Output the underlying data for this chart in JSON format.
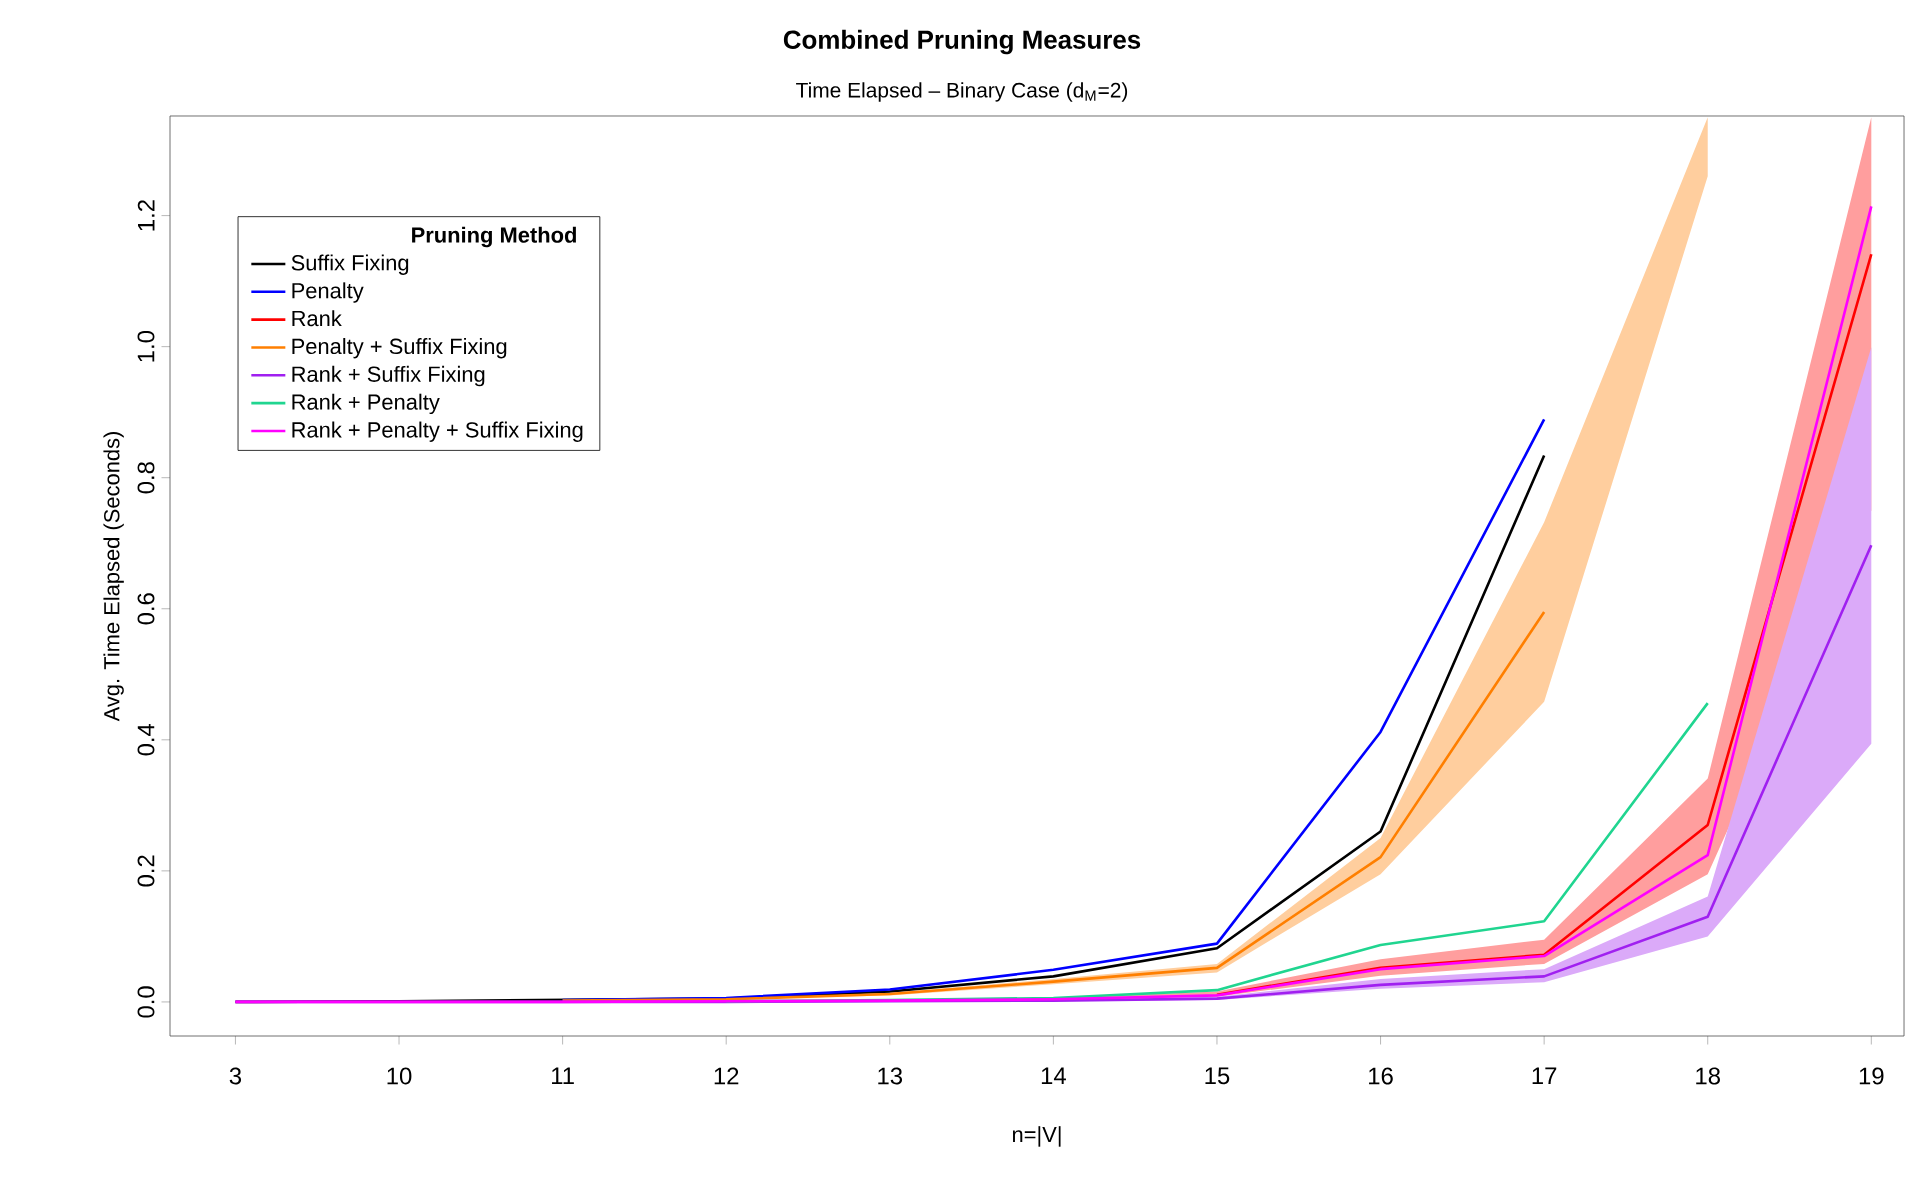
{
  "chart_data": {
    "type": "line",
    "title": "**Combined Pruning Measures**",
    "subtitle": "Time Elapsed – Binary Case (d$_{M}$=2)",
    "xlabel": "n=|V|",
    "ylabel": "Avg. Time Elapsed (Seconds)",
    "legend_title": "**Pruning Method**",
    "legend": "top left",
    "grid": false,
    "marker": "none",
    "line_style": "solid",
    "categories": [
      "3",
      "10",
      "11",
      "12",
      "13",
      "14",
      "15",
      "16",
      "17",
      "18",
      "19"
    ],
    "ylim": [
      -0.052,
      1.352
    ],
    "yticks": [
      {
        "value": 0,
        "label": "0.0"
      },
      {
        "value": 0.2,
        "label": "0.2"
      },
      {
        "value": 0.4,
        "label": "0.4"
      },
      {
        "value": 0.6,
        "label": "0.6"
      },
      {
        "value": 0.8,
        "label": "0.8"
      },
      {
        "value": 1.0,
        "label": "1.0"
      },
      {
        "value": 1.2,
        "label": "1.2"
      }
    ],
    "series": [
      {
        "name": "Suffix Fixing",
        "color": "#000000",
        "values": [
          0,
          0.001,
          0.003,
          0.005,
          0.016,
          0.039,
          0.082,
          0.26,
          0.834,
          null,
          null
        ]
      },
      {
        "name": "Penalty",
        "color": "#0000ff",
        "values": [
          null,
          null,
          0.003,
          0.006,
          0.019,
          0.049,
          0.089,
          0.412,
          0.889,
          null,
          null
        ]
      },
      {
        "name": "Rank",
        "color": "#ff0000",
        "values": [
          null,
          null,
          null,
          null,
          null,
          null,
          0.011,
          0.052,
          0.072,
          0.27,
          1.141
        ],
        "lower": [
          0,
          0,
          0,
          0.001,
          0.002,
          0.003,
          0.008,
          0.04,
          0.058,
          0.195,
          0.75
        ],
        "upper": [
          0,
          0,
          0,
          0.001,
          0.003,
          0.006,
          0.016,
          0.065,
          0.095,
          0.341,
          1.35
        ]
      },
      {
        "name": "Penalty + Suffix Fixing",
        "color": "#ff7f00",
        "values": [
          null,
          null,
          0.002,
          0.004,
          0.012,
          0.031,
          0.052,
          0.221,
          0.595,
          null,
          null
        ],
        "lower": [
          0,
          0.001,
          0.002,
          0.004,
          0.01,
          0.027,
          0.045,
          0.195,
          0.458,
          1.26,
          null
        ],
        "upper": [
          0,
          0.001,
          0.002,
          0.005,
          0.014,
          0.035,
          0.058,
          0.25,
          0.732,
          1.35,
          null
        ]
      },
      {
        "name": "Rank + Suffix Fixing",
        "color": "#a020f0",
        "values": [
          0,
          0,
          0,
          0,
          0.001,
          0.002,
          0.005,
          0.026,
          0.039,
          0.13,
          0.697
        ],
        "lower": [
          0,
          0,
          0,
          0,
          0.001,
          0.001,
          0.003,
          0.02,
          0.03,
          0.1,
          0.394
        ],
        "upper": [
          0,
          0,
          0,
          0,
          0.002,
          0.003,
          0.008,
          0.035,
          0.05,
          0.161,
          0.999
        ]
      },
      {
        "name": "Rank + Penalty",
        "color": "#20d590",
        "values": [
          null,
          null,
          null,
          0.001,
          0.003,
          0.006,
          0.018,
          0.087,
          0.123,
          0.456,
          null
        ]
      },
      {
        "name": "Rank + Penalty + Suffix Fixing",
        "color": "#ff00ff",
        "values": [
          0,
          0,
          0,
          0.001,
          0.002,
          0.004,
          0.01,
          0.05,
          0.07,
          0.224,
          1.214
        ]
      }
    ]
  }
}
